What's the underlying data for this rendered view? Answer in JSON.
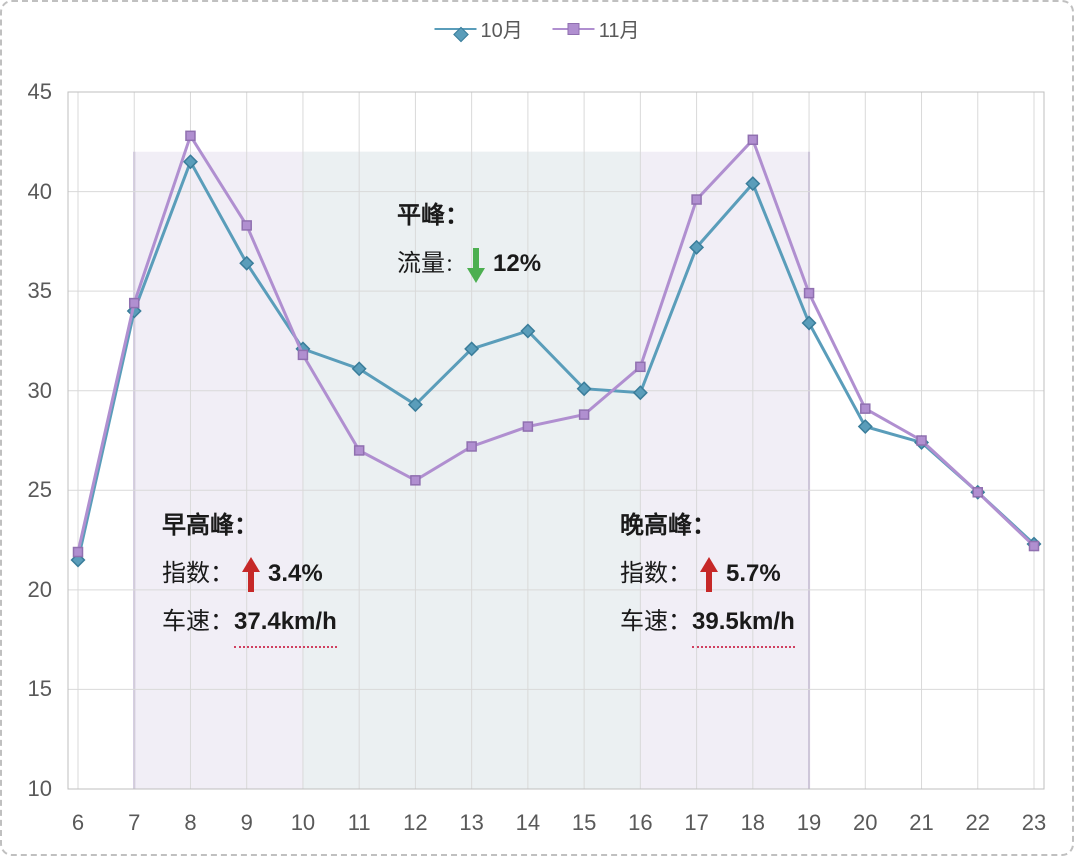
{
  "chart": {
    "type": "line",
    "legend": {
      "series1": {
        "label": "10月",
        "color": "#5a9dba",
        "marker": "diamond",
        "marker_fill": "#5a9dba",
        "marker_border": "#3a7d9a"
      },
      "series2": {
        "label": "11月",
        "color": "#b08fd0",
        "marker": "square",
        "marker_fill": "#b08fd0",
        "marker_border": "#9070b0"
      }
    },
    "x_values": [
      6,
      7,
      8,
      9,
      10,
      11,
      12,
      13,
      14,
      15,
      16,
      17,
      18,
      19,
      20,
      21,
      22,
      23
    ],
    "series1_values": [
      21.5,
      34.0,
      41.5,
      36.4,
      32.1,
      31.1,
      29.3,
      32.1,
      33.0,
      30.1,
      29.9,
      37.2,
      40.4,
      33.4,
      28.2,
      27.4,
      24.9,
      22.3
    ],
    "series2_values": [
      21.9,
      34.4,
      42.8,
      38.3,
      31.8,
      27.0,
      25.5,
      27.2,
      28.2,
      28.8,
      31.2,
      39.6,
      42.6,
      34.9,
      29.1,
      27.5,
      24.9,
      22.2
    ],
    "ylim": [
      10,
      45
    ],
    "ytick_step": 5,
    "line_width": 3,
    "marker_size": 9,
    "background_color": "#ffffff",
    "grid_color": "#d9d9d9",
    "border_color": "#bfbfbf",
    "highlight_band": {
      "x_start": 7,
      "x_end": 19,
      "y_start": 10,
      "y_end": 42,
      "fill": "#e5e0ee",
      "fill_opacity": 0.55,
      "border_left": "#c0b0d8",
      "border_right": "#c0b0d8"
    },
    "inner_band": {
      "x_start": 10,
      "x_end": 16,
      "y_start": 10,
      "y_end": 42,
      "fill": "#e8f0f0",
      "fill_opacity": 0.75
    },
    "axis_font_size": 22,
    "axis_color": "#595959"
  },
  "annotations": {
    "flat_peak": {
      "title": "平峰：",
      "label": "流量",
      "colon": "：",
      "value": "12%",
      "arrow_color": "#4caf50",
      "arrow_direction": "down"
    },
    "morning_peak": {
      "title": "早高峰：",
      "index_label": "指数：",
      "index_value": "3.4%",
      "speed_label": "车速：",
      "speed_value": "37.4km/h",
      "arrow_color": "#c62828",
      "arrow_direction": "up"
    },
    "evening_peak": {
      "title": "晚高峰：",
      "index_label": "指数：",
      "index_value": "5.7%",
      "speed_label": "车速：",
      "speed_value": "39.5km/h",
      "arrow_color": "#c62828",
      "arrow_direction": "up"
    }
  }
}
